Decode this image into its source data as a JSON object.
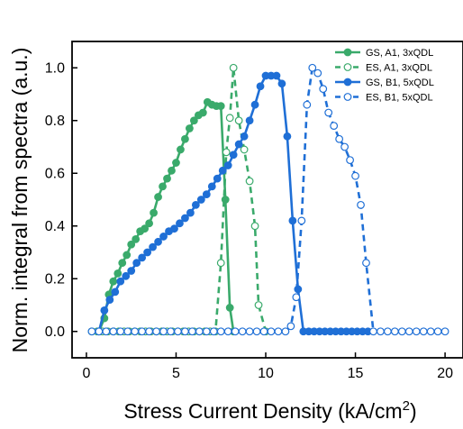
{
  "colors": {
    "green": "#3aaa6b",
    "blue": "#1f6fd6",
    "axis": "#000000"
  },
  "chart_data": {
    "type": "line",
    "xlabel": "Stress Current Density (kA/cm",
    "xlabel_sup": "2",
    "xlabel_close": ")",
    "ylabel": "Norm. integral from spectra (a.u.)",
    "xlim": [
      -0.8,
      21.0
    ],
    "ylim": [
      -0.1,
      1.1
    ],
    "xticks": [
      0,
      5,
      10,
      15,
      20
    ],
    "yticks": [
      0.0,
      0.2,
      0.4,
      0.6,
      0.8,
      1.0
    ],
    "xtick_labels": [
      "0",
      "5",
      "10",
      "15",
      "20"
    ],
    "ytick_labels": [
      "0.0",
      "0.2",
      "0.4",
      "0.6",
      "0.8",
      "1.0"
    ],
    "legend_position": "top-right",
    "series": [
      {
        "name": "GS, A1, 3xQDL",
        "color": "#3aaa6b",
        "dash": false,
        "filled": true,
        "x": [
          0.7,
          1.0,
          1.25,
          1.5,
          1.75,
          2.0,
          2.25,
          2.5,
          2.75,
          3.0,
          3.25,
          3.5,
          3.75,
          4.0,
          4.25,
          4.5,
          4.75,
          5.0,
          5.25,
          5.5,
          5.75,
          6.0,
          6.25,
          6.5,
          6.75,
          7.0,
          7.25,
          7.5,
          7.75,
          8.0,
          8.2
        ],
        "y": [
          0.0,
          0.05,
          0.14,
          0.19,
          0.22,
          0.26,
          0.29,
          0.33,
          0.35,
          0.38,
          0.39,
          0.41,
          0.45,
          0.51,
          0.55,
          0.58,
          0.61,
          0.64,
          0.69,
          0.73,
          0.77,
          0.8,
          0.82,
          0.83,
          0.87,
          0.86,
          0.855,
          0.855,
          0.5,
          0.09,
          0.0
        ]
      },
      {
        "name": "ES, A1, 3xQDL",
        "color": "#3aaa6b",
        "dash": true,
        "filled": false,
        "x": [
          0.3,
          0.6,
          0.9,
          1.2,
          1.5,
          1.8,
          2.1,
          2.4,
          2.7,
          3.0,
          3.3,
          3.6,
          3.9,
          4.2,
          4.5,
          4.8,
          5.1,
          5.4,
          5.7,
          6.0,
          6.3,
          6.6,
          6.9,
          7.2,
          7.5,
          7.8,
          8.0,
          8.2,
          8.5,
          8.8,
          9.1,
          9.4,
          9.6,
          10.0
        ],
        "y": [
          0.0,
          0.0,
          0.0,
          0.0,
          0.0,
          0.0,
          0.0,
          0.0,
          0.0,
          0.0,
          0.0,
          0.0,
          0.0,
          0.0,
          0.0,
          0.0,
          0.0,
          0.0,
          0.0,
          0.0,
          0.0,
          0.0,
          0.0,
          0.0,
          0.26,
          0.68,
          0.81,
          1.0,
          0.8,
          0.69,
          0.57,
          0.4,
          0.1,
          0.0
        ]
      },
      {
        "name": "GS, B1, 5xQDL",
        "color": "#1f6fd6",
        "dash": false,
        "filled": true,
        "x": [
          0.7,
          1.0,
          1.3,
          1.6,
          1.9,
          2.2,
          2.5,
          2.8,
          3.1,
          3.4,
          3.7,
          4.0,
          4.3,
          4.6,
          4.9,
          5.2,
          5.5,
          5.8,
          6.1,
          6.4,
          6.7,
          7.0,
          7.3,
          7.6,
          7.9,
          8.2,
          8.5,
          8.8,
          9.1,
          9.4,
          9.7,
          10.0,
          10.3,
          10.6,
          10.9,
          11.2,
          11.5,
          11.8,
          12.1,
          12.4,
          12.7,
          13.0,
          13.3,
          13.6,
          13.9,
          14.2,
          14.5,
          14.8,
          15.1,
          15.4,
          15.7
        ],
        "y": [
          0.0,
          0.08,
          0.12,
          0.15,
          0.19,
          0.21,
          0.23,
          0.26,
          0.28,
          0.3,
          0.32,
          0.34,
          0.36,
          0.38,
          0.39,
          0.41,
          0.43,
          0.45,
          0.48,
          0.5,
          0.52,
          0.55,
          0.58,
          0.61,
          0.63,
          0.67,
          0.71,
          0.74,
          0.8,
          0.86,
          0.93,
          0.97,
          0.97,
          0.97,
          0.94,
          0.74,
          0.42,
          0.16,
          0.0,
          0.0,
          0.0,
          0.0,
          0.0,
          0.0,
          0.0,
          0.0,
          0.0,
          0.0,
          0.0,
          0.0,
          0.0
        ]
      },
      {
        "name": "ES, B1, 5xQDL",
        "color": "#1f6fd6",
        "dash": true,
        "filled": false,
        "x": [
          0.3,
          0.7,
          1.1,
          1.5,
          1.9,
          2.3,
          2.7,
          3.1,
          3.5,
          3.9,
          4.3,
          4.7,
          5.1,
          5.5,
          5.9,
          6.3,
          6.7,
          7.1,
          7.5,
          7.9,
          8.3,
          8.7,
          9.1,
          9.5,
          9.9,
          10.3,
          10.7,
          11.1,
          11.4,
          11.7,
          12.0,
          12.3,
          12.6,
          12.9,
          13.2,
          13.5,
          13.8,
          14.1,
          14.4,
          14.7,
          15.0,
          15.3,
          15.6,
          16.0,
          16.4,
          16.8,
          17.2,
          17.6,
          18.0,
          18.4,
          18.8,
          19.2,
          19.6,
          20.0
        ],
        "y": [
          0.0,
          0.0,
          0.0,
          0.0,
          0.0,
          0.0,
          0.0,
          0.0,
          0.0,
          0.0,
          0.0,
          0.0,
          0.0,
          0.0,
          0.0,
          0.0,
          0.0,
          0.0,
          0.0,
          0.0,
          0.0,
          0.0,
          0.0,
          0.0,
          0.0,
          0.0,
          0.0,
          0.0,
          0.02,
          0.13,
          0.42,
          0.86,
          1.0,
          0.98,
          0.92,
          0.83,
          0.78,
          0.73,
          0.7,
          0.65,
          0.59,
          0.48,
          0.26,
          0.0,
          0.0,
          0.0,
          0.0,
          0.0,
          0.0,
          0.0,
          0.0,
          0.0,
          0.0,
          0.0
        ]
      }
    ]
  }
}
